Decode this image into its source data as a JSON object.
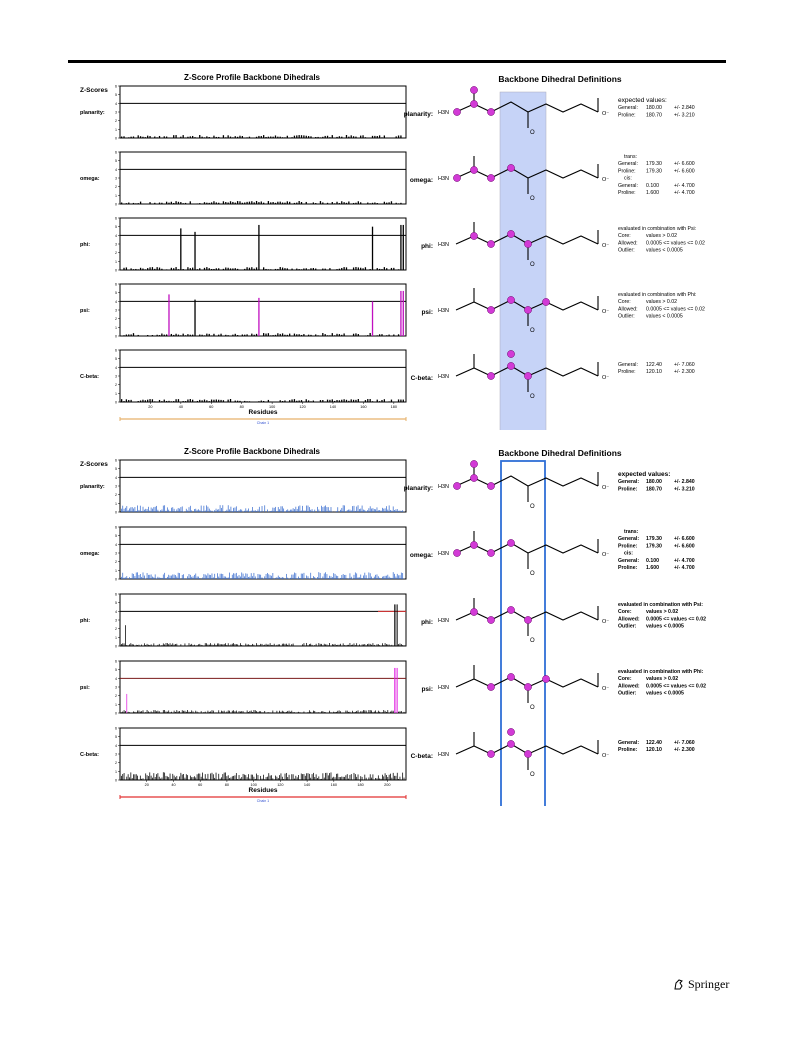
{
  "publisher": "Springer",
  "figures": [
    {
      "left_title": "Z-Score Profile Backbone Dihedrals",
      "right_title": "Backbone Dihedral Definitions",
      "ylabel": "Z-Scores",
      "xlabel": "Residues",
      "chain_label": "Chain 1",
      "xticks": [
        "20",
        "40",
        "60",
        "80",
        "100",
        "120",
        "140",
        "160",
        "180"
      ],
      "rows": [
        {
          "label": "planarity:",
          "right_label": "planarity:",
          "info": [
            {
              "l": "expected values:",
              "v": "",
              "e": ""
            },
            {
              "l": "General:",
              "v": "180.00",
              "e": "+/- 2.840"
            },
            {
              "l": "Proline:",
              "v": "180.70",
              "e": "+/- 3.210"
            }
          ]
        },
        {
          "label": "omega:",
          "right_label": "omega:",
          "info": [
            {
              "l": "trans:",
              "v": "",
              "e": ""
            },
            {
              "l": "General:",
              "v": "179.30",
              "e": "+/- 6.600"
            },
            {
              "l": "Proline:",
              "v": "179.30",
              "e": "+/- 6.600"
            },
            {
              "l": "cis:",
              "v": "",
              "e": ""
            },
            {
              "l": "General:",
              "v": "0.100",
              "e": "+/- 4.700"
            },
            {
              "l": "Proline:",
              "v": "1.600",
              "e": "+/- 4.700"
            }
          ]
        },
        {
          "label": "phi:",
          "right_label": "phi:",
          "info": [
            {
              "l": "evaluated in combination with Psi:",
              "v": "",
              "e": ""
            },
            {
              "l": "Core:",
              "v": "values > 0.02",
              "e": ""
            },
            {
              "l": "Allowed:",
              "v": "0.0005 <= values <= 0.02",
              "e": ""
            },
            {
              "l": "Outlier:",
              "v": "values < 0.0005",
              "e": ""
            }
          ]
        },
        {
          "label": "psi:",
          "right_label": "psi:",
          "info": [
            {
              "l": "evaluated in combination with Phi:",
              "v": "",
              "e": ""
            },
            {
              "l": "Core:",
              "v": "values > 0.02",
              "e": ""
            },
            {
              "l": "Allowed:",
              "v": "0.0005 <= values <= 0.02",
              "e": ""
            },
            {
              "l": "Outlier:",
              "v": "values < 0.0005",
              "e": ""
            }
          ]
        },
        {
          "label": "C-beta:",
          "right_label": "C-beta:",
          "info": [
            {
              "l": "General:",
              "v": "122.40",
              "e": "+/- 7.060"
            },
            {
              "l": "Proline:",
              "v": "120.10",
              "e": "+/- 2.300"
            }
          ]
        }
      ],
      "chart_data": {
        "type": "bar",
        "ylim": [
          0,
          6
        ],
        "threshold": 4
      }
    },
    {
      "left_title": "Z-Score Profile Backbone Dihedrals",
      "right_title": "Backbone Dihedral Definitions",
      "ylabel": "Z-Scores",
      "xlabel": "Residues",
      "chain_label": "Chain 1",
      "xticks": [
        "20",
        "40",
        "60",
        "80",
        "100",
        "120",
        "140",
        "160",
        "180",
        "200"
      ],
      "rows": [
        {
          "label": "planarity:",
          "right_label": "planarity:",
          "info": [
            {
              "l": "expected values:",
              "v": "",
              "e": ""
            },
            {
              "l": "General:",
              "v": "180.00",
              "e": "+/- 2.840"
            },
            {
              "l": "Proline:",
              "v": "180.70",
              "e": "+/- 3.210"
            }
          ]
        },
        {
          "label": "omega:",
          "right_label": "omega:",
          "info": [
            {
              "l": "trans:",
              "v": "",
              "e": ""
            },
            {
              "l": "General:",
              "v": "179.30",
              "e": "+/- 6.600"
            },
            {
              "l": "Proline:",
              "v": "179.30",
              "e": "+/- 6.600"
            },
            {
              "l": "cis:",
              "v": "",
              "e": ""
            },
            {
              "l": "General:",
              "v": "0.100",
              "e": "+/- 4.700"
            },
            {
              "l": "Proline:",
              "v": "1.600",
              "e": "+/- 4.700"
            }
          ]
        },
        {
          "label": "phi:",
          "right_label": "phi:",
          "info": [
            {
              "l": "evaluated in combination with Psi:",
              "v": "",
              "e": ""
            },
            {
              "l": "Core:",
              "v": "values > 0.02",
              "e": ""
            },
            {
              "l": "Allowed:",
              "v": "0.0005 <= values <= 0.02",
              "e": ""
            },
            {
              "l": "Outlier:",
              "v": "values < 0.0005",
              "e": ""
            }
          ]
        },
        {
          "label": "psi:",
          "right_label": "psi:",
          "info": [
            {
              "l": "evaluated in combination with Phi:",
              "v": "",
              "e": ""
            },
            {
              "l": "Core:",
              "v": "values > 0.02",
              "e": ""
            },
            {
              "l": "Allowed:",
              "v": "0.0005 <= values <= 0.02",
              "e": ""
            },
            {
              "l": "Outlier:",
              "v": "values < 0.0005",
              "e": ""
            }
          ]
        },
        {
          "label": "C-beta:",
          "right_label": "C-beta:",
          "info": [
            {
              "l": "General:",
              "v": "122.40",
              "e": "+/- 7.060"
            },
            {
              "l": "Proline:",
              "v": "120.10",
              "e": "+/- 2.300"
            }
          ]
        }
      ],
      "chart_data": {
        "type": "bar",
        "ylim": [
          0,
          6
        ],
        "threshold": 4
      }
    }
  ]
}
